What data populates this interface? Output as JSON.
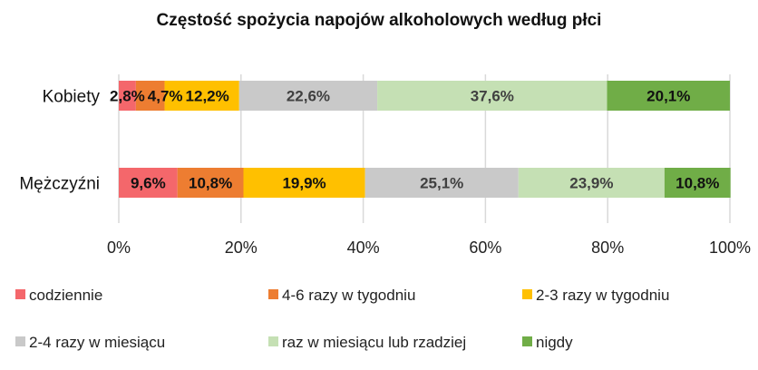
{
  "chart_data": {
    "type": "bar",
    "orientation": "horizontal",
    "stacked": "percent",
    "title": "Częstość spożycia napojów alkoholowych według płci",
    "categories": [
      "Kobiety",
      "Mężczyźni"
    ],
    "series": [
      {
        "name": "codziennie",
        "color": "#F4676B",
        "values": [
          2.8,
          9.6
        ],
        "labels": [
          "2,8%",
          "9,6%"
        ]
      },
      {
        "name": "4-6 razy w tygodniu",
        "color": "#ED7D31",
        "values": [
          4.7,
          10.8
        ],
        "labels": [
          "4,7%",
          "10,8%"
        ]
      },
      {
        "name": "2-3 razy w tygodniu",
        "color": "#FFC000",
        "values": [
          12.2,
          19.9
        ],
        "labels": [
          "12,2%",
          "19,9%"
        ]
      },
      {
        "name": "2-4 razy w miesiącu",
        "color": "#C9C9C9",
        "values": [
          22.6,
          25.1
        ],
        "labels": [
          "22,6%",
          "25,1%"
        ]
      },
      {
        "name": "raz w miesiącu lub rzadziej",
        "color": "#C5E0B4",
        "values": [
          37.6,
          23.9
        ],
        "labels": [
          "37,6%",
          "23,9%"
        ]
      },
      {
        "name": "nigdy",
        "color": "#70AD47",
        "values": [
          20.1,
          10.8
        ],
        "labels": [
          "20,1%",
          "10,8%"
        ]
      }
    ],
    "xlim": [
      0,
      100
    ],
    "xticks": [
      "0%",
      "20%",
      "40%",
      "60%",
      "80%",
      "100%"
    ],
    "grid": "vertical",
    "legend": "bottom"
  }
}
